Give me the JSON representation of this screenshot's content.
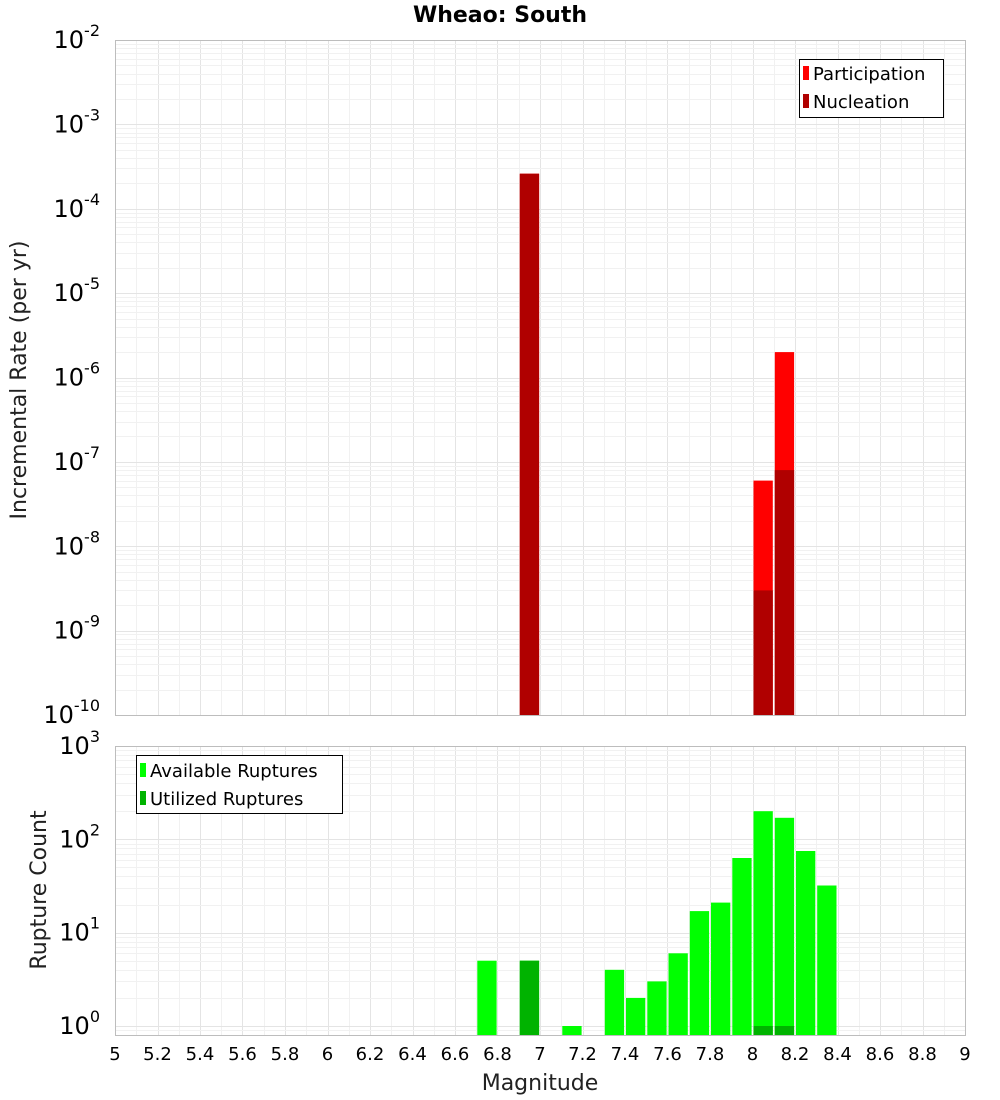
{
  "chart_data": [
    {
      "type": "bar",
      "title": "Wheao: South",
      "xlabel": "",
      "ylabel": "Incremental Rate (per yr)",
      "yscale": "log",
      "ylim": [
        1e-10,
        0.01
      ],
      "xlim": [
        5,
        9
      ],
      "grid": true,
      "legend_position": "top-right",
      "y_ticks": [
        {
          "base": "10",
          "exp": "-10"
        },
        {
          "base": "10",
          "exp": "-9"
        },
        {
          "base": "10",
          "exp": "-8"
        },
        {
          "base": "10",
          "exp": "-7"
        },
        {
          "base": "10",
          "exp": "-6"
        },
        {
          "base": "10",
          "exp": "-5"
        },
        {
          "base": "10",
          "exp": "-4"
        },
        {
          "base": "10",
          "exp": "-3"
        },
        {
          "base": "10",
          "exp": "-2"
        }
      ],
      "series": [
        {
          "name": "Participation",
          "color": "#ff0000",
          "x": [
            6.95,
            8.05,
            8.15
          ],
          "values": [
            0.00026,
            6e-08,
            2e-06
          ]
        },
        {
          "name": "Nucleation",
          "color": "#b00000",
          "x": [
            6.95,
            8.05,
            8.15
          ],
          "values": [
            0.00026,
            3e-09,
            8e-08
          ]
        }
      ]
    },
    {
      "type": "bar",
      "title": "",
      "xlabel": "Magnitude",
      "ylabel": "Rupture Count",
      "yscale": "log",
      "ylim": [
        0.8,
        1000
      ],
      "xlim": [
        5,
        9
      ],
      "grid": true,
      "legend_position": "top-left",
      "y_ticks": [
        {
          "base": "10",
          "exp": "0"
        },
        {
          "base": "10",
          "exp": "1"
        },
        {
          "base": "10",
          "exp": "2"
        },
        {
          "base": "10",
          "exp": "3"
        }
      ],
      "x_ticks": [
        "5",
        "5.2",
        "5.4",
        "5.6",
        "5.8",
        "6",
        "6.2",
        "6.4",
        "6.6",
        "6.8",
        "7",
        "7.2",
        "7.4",
        "7.6",
        "7.8",
        "8",
        "8.2",
        "8.4",
        "8.6",
        "8.8",
        "9"
      ],
      "series": [
        {
          "name": "Available Ruptures",
          "color": "#00ff00",
          "x": [
            6.75,
            6.95,
            7.15,
            7.35,
            7.45,
            7.55,
            7.65,
            7.75,
            7.85,
            7.95,
            8.05,
            8.15,
            8.25,
            8.35
          ],
          "values": [
            5,
            5,
            1,
            4,
            2,
            3,
            6,
            17,
            21,
            63,
            200,
            170,
            75,
            32
          ]
        },
        {
          "name": "Utilized Ruptures",
          "color": "#00b300",
          "x": [
            6.95,
            8.05,
            8.15
          ],
          "values": [
            5,
            1,
            1
          ]
        }
      ]
    }
  ]
}
